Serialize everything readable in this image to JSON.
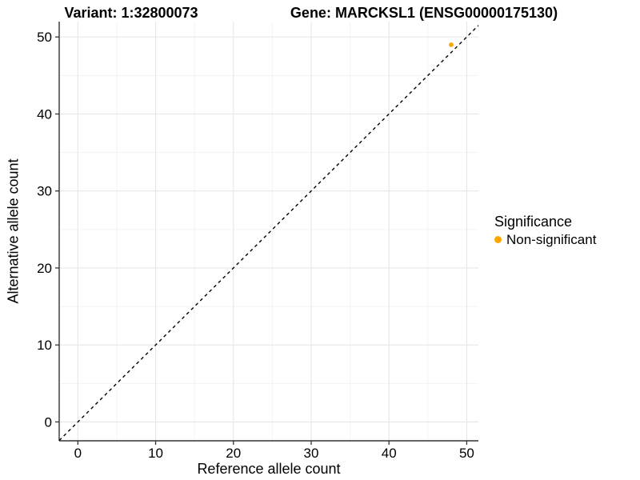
{
  "title": {
    "variant": "Variant: 1:32800073",
    "gene": "Gene: MARCKSL1 (ENSG00000175130)"
  },
  "legend": {
    "title": "Significance",
    "items": [
      {
        "label": "Non-significant",
        "color": "#FFA500"
      }
    ]
  },
  "colors": {
    "background": "#FFFFFF",
    "grid_major": "#E6E6E6",
    "grid_minor": "#F2F2F2",
    "axis_line": "#333333",
    "tick_text": "#000000",
    "reference_line": "#000000",
    "point": "#FFA500"
  },
  "chart_data": {
    "type": "scatter",
    "title": "Variant: 1:32800073   Gene: MARCKSL1 (ENSG00000175130)",
    "xlabel": "Reference allele count",
    "ylabel": "Alternative allele count",
    "xlim": [
      -2.4,
      51.5
    ],
    "ylim": [
      -2.45,
      52.0
    ],
    "x_ticks": [
      0,
      10,
      20,
      30,
      40,
      50
    ],
    "y_ticks": [
      0,
      10,
      20,
      30,
      40,
      50
    ],
    "x_minor_ticks": [
      5,
      15,
      25,
      35,
      45
    ],
    "y_minor_ticks": [
      5,
      15,
      25,
      35,
      45
    ],
    "grid": true,
    "legend_position": "right",
    "series": [
      {
        "name": "Non-significant",
        "color": "#FFA500",
        "marker": "circle",
        "points": [
          [
            48,
            49
          ]
        ]
      }
    ],
    "reference_line": {
      "type": "identity",
      "equation": "y = x",
      "style": "dashed",
      "color": "#000000"
    }
  }
}
